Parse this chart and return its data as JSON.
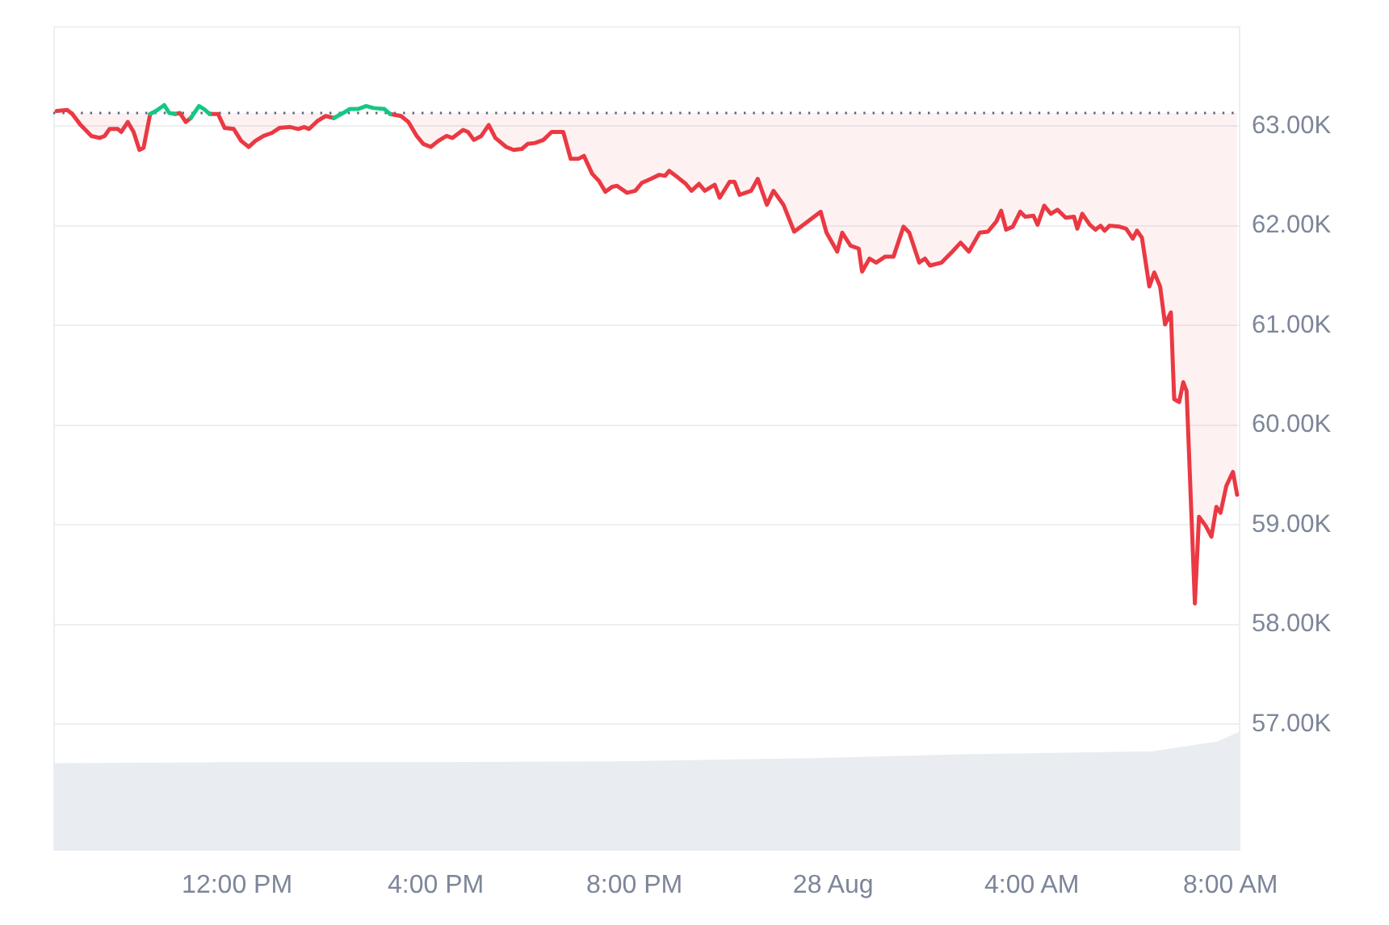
{
  "chart_data": {
    "type": "line",
    "series": [
      {
        "type": "area",
        "color": "#e9edf2",
        "x": [
          "--08-27T08:18",
          "--08-27T11:35",
          "--08-27T15:33",
          "--08-27T19:54",
          "--08-27T23:33",
          "--08-28T02:36",
          "--08-28T06:26",
          "--08-28T07:45",
          "--08-28T08:12"
        ],
        "values": [
          56.6,
          56.61,
          56.61,
          56.62,
          56.65,
          56.69,
          56.72,
          56.82,
          56.92
        ]
      },
      {
        "color": "#ea3943",
        "x": [
          "--08-27T08:22",
          "--08-27T08:35",
          "--08-27T08:41",
          "--08-27T08:51",
          "--08-27T09:04",
          "--08-27T09:14",
          "--08-27T09:20",
          "--08-27T09:26",
          "--08-27T09:36",
          "--08-27T09:40",
          "--08-27T09:48",
          "--08-27T09:55",
          "--08-27T10:02",
          "--08-27T10:07",
          "--08-27T10:15",
          "--08-27T10:22",
          "--08-27T10:32",
          "--08-27T10:38",
          "--08-27T10:45",
          "--08-27T10:51",
          "--08-27T10:58",
          "--08-27T11:04",
          "--08-27T11:14",
          "--08-27T11:20",
          "--08-27T11:27",
          "--08-27T11:37",
          "--08-27T11:45",
          "--08-27T11:56",
          "--08-27T12:05",
          "--08-27T12:14",
          "--08-27T12:22",
          "--08-27T12:32",
          "--08-27T12:42",
          "--08-27T12:51",
          "--08-27T13:04",
          "--08-27T13:14",
          "--08-27T13:21",
          "--08-27T13:27",
          "--08-27T13:37",
          "--08-27T13:47",
          "--08-27T13:57",
          "--08-27T14:08",
          "--08-27T14:16",
          "--08-27T14:26",
          "--08-27T14:36",
          "--08-27T14:45",
          "--08-27T14:58",
          "--08-27T15:05",
          "--08-27T15:18",
          "--08-27T15:27",
          "--08-27T15:37",
          "--08-27T15:45",
          "--08-27T15:54",
          "--08-27T16:03",
          "--08-27T16:13",
          "--08-27T16:20",
          "--08-27T16:33",
          "--08-27T16:39",
          "--08-27T16:46",
          "--08-27T16:55",
          "--08-27T17:04",
          "--08-27T17:12",
          "--08-27T17:25",
          "--08-27T17:34",
          "--08-27T17:44",
          "--08-27T17:51",
          "--08-27T18:00",
          "--08-27T18:10",
          "--08-27T18:20",
          "--08-27T18:34",
          "--08-27T18:43",
          "--08-27T18:52",
          "--08-27T18:59",
          "--08-27T19:09",
          "--08-27T19:17",
          "--08-27T19:25",
          "--08-27T19:33",
          "--08-27T19:39",
          "--08-27T19:51",
          "--08-27T20:01",
          "--08-27T20:09",
          "--08-27T20:20",
          "--08-27T20:30",
          "--08-27T20:37",
          "--08-27T20:42",
          "--08-27T20:53",
          "--08-27T21:02",
          "--08-27T21:09",
          "--08-27T21:18",
          "--08-27T21:25",
          "--08-27T21:37",
          "--08-27T21:43",
          "--08-27T21:55",
          "--08-27T22:01",
          "--08-27T22:07",
          "--08-27T22:21",
          "--08-27T22:29",
          "--08-27T22:40",
          "--08-27T22:48",
          "--08-27T23:00",
          "--08-27T23:13",
          "--08-27T23:29",
          "--08-27T23:45",
          "--08-27T23:52",
          "--08-28T00:05",
          "--08-28T00:11",
          "--08-28T00:21",
          "--08-28T00:31",
          "--08-28T00:35",
          "--08-28T00:44",
          "--08-28T00:52",
          "--08-28T01:03",
          "--08-28T01:13",
          "--08-28T01:25",
          "--08-28T01:32",
          "--08-28T01:44",
          "--08-28T01:51",
          "--08-28T01:57",
          "--08-28T02:11",
          "--08-28T02:24",
          "--08-28T02:34",
          "--08-28T02:44",
          "--08-28T02:57",
          "--08-28T03:07",
          "--08-28T03:17",
          "--08-28T03:23",
          "--08-28T03:29",
          "--08-28T03:37",
          "--08-28T03:46",
          "--08-28T03:52",
          "--08-28T04:02",
          "--08-28T04:07",
          "--08-28T04:15",
          "--08-28T04:23",
          "--08-28T04:31",
          "--08-28T04:41",
          "--08-28T04:51",
          "--08-28T04:55",
          "--08-28T05:01",
          "--08-28T05:10",
          "--08-28T05:17",
          "--08-28T05:23",
          "--08-28T05:28",
          "--08-28T05:34",
          "--08-28T05:46",
          "--08-28T05:54",
          "--08-28T06:02",
          "--08-28T06:07",
          "--08-28T06:13",
          "--08-28T06:22",
          "--08-28T06:28",
          "--08-28T06:35",
          "--08-28T06:41",
          "--08-28T06:48",
          "--08-28T06:52",
          "--08-28T06:58",
          "--08-28T07:03",
          "--08-28T07:07",
          "--08-28T07:17",
          "--08-28T07:22",
          "--08-28T07:30",
          "--08-28T07:37",
          "--08-28T07:43",
          "--08-28T07:48",
          "--08-28T07:55",
          "--08-28T08:03",
          "--08-28T08:08"
        ],
        "values": [
          63.15,
          63.16,
          63.12,
          63.01,
          62.9,
          62.88,
          62.9,
          62.97,
          62.97,
          62.94,
          63.04,
          62.94,
          62.76,
          62.78,
          63.12,
          null,
          null,
          null,
          63.12,
          63.13,
          63.04,
          63.08,
          null,
          null,
          63.12,
          63.12,
          62.98,
          62.97,
          62.85,
          62.79,
          62.85,
          62.9,
          62.93,
          62.98,
          62.99,
          62.97,
          62.99,
          62.97,
          63.05,
          63.1,
          63.08,
          null,
          null,
          null,
          null,
          null,
          null,
          63.12,
          63.1,
          63.04,
          62.9,
          62.82,
          62.79,
          62.85,
          62.9,
          62.88,
          62.96,
          62.94,
          62.86,
          62.9,
          63.01,
          62.88,
          62.79,
          62.76,
          62.77,
          62.82,
          62.83,
          62.86,
          62.94,
          62.94,
          62.67,
          62.67,
          62.7,
          62.52,
          62.45,
          62.34,
          62.39,
          62.4,
          62.33,
          62.35,
          62.43,
          62.47,
          62.51,
          62.5,
          62.55,
          62.48,
          62.42,
          62.35,
          62.42,
          62.35,
          62.41,
          62.28,
          62.44,
          62.44,
          62.31,
          62.35,
          62.47,
          62.21,
          62.35,
          62.21,
          61.94,
          62.04,
          62.14,
          61.93,
          61.74,
          61.93,
          61.8,
          61.77,
          61.54,
          61.67,
          61.63,
          61.69,
          61.69,
          61.99,
          61.93,
          61.63,
          61.67,
          61.6,
          61.63,
          61.74,
          61.83,
          61.74,
          61.93,
          61.94,
          62.04,
          62.15,
          61.96,
          61.99,
          62.14,
          62.09,
          62.1,
          62.01,
          62.2,
          62.12,
          62.16,
          62.08,
          62.09,
          61.97,
          62.12,
          62.01,
          61.96,
          62.0,
          61.95,
          62.0,
          61.99,
          61.97,
          61.87,
          61.95,
          61.88,
          61.39,
          61.53,
          61.39,
          61.01,
          61.13,
          60.26,
          60.23,
          60.43,
          60.34,
          58.21,
          59.08,
          58.99,
          58.88,
          59.18,
          59.12,
          59.39,
          59.53,
          59.3
        ]
      },
      {
        "color": "#16c784",
        "x": [
          "--08-27T10:15",
          "--08-27T10:22",
          "--08-27T10:32",
          "--08-27T10:38",
          "--08-27T10:45",
          "--08-27T10:51",
          "--08-27T11:04",
          "--08-27T11:14",
          "--08-27T11:20",
          "--08-27T11:27",
          "--08-27T11:37",
          "--08-27T13:57",
          "--08-27T14:08",
          "--08-27T14:16",
          "--08-27T14:26",
          "--08-27T14:36",
          "--08-27T14:45",
          "--08-27T14:58",
          "--08-27T15:05"
        ],
        "values": [
          63.12,
          63.15,
          63.21,
          63.13,
          63.12,
          null,
          63.08,
          63.2,
          63.17,
          63.12,
          null,
          63.08,
          63.13,
          63.17,
          63.17,
          63.2,
          63.18,
          63.17,
          63.12
        ]
      }
    ],
    "xlim": [
      "--08-27T08:18",
      "--08-28T08:12"
    ],
    "xticks": [
      {
        "value": "--08-27T12:00",
        "label": "12:00 PM"
      },
      {
        "value": "--08-27T16:00",
        "label": "4:00 PM"
      },
      {
        "value": "--08-27T20:00",
        "label": "8:00 PM"
      },
      {
        "value": "--08-28T00:00",
        "label": "28 Aug"
      },
      {
        "value": "--08-28T04:00",
        "label": "4:00 AM"
      },
      {
        "value": "--08-28T08:00",
        "label": "8:00 AM"
      }
    ],
    "ylim": [
      55.73,
      64
    ],
    "yticks": [
      {
        "value": 57,
        "label": "57.00K"
      },
      {
        "value": 58,
        "label": "58.00K"
      },
      {
        "value": 59,
        "label": "59.00K"
      },
      {
        "value": 60,
        "label": "60.00K"
      },
      {
        "value": 61,
        "label": "61.00K"
      },
      {
        "value": 62,
        "label": "62.00K"
      },
      {
        "value": 63,
        "label": "63.00K"
      }
    ],
    "grid": "y",
    "ref_lines": [
      {
        "axis": "y",
        "value": 63.13,
        "color": "#58667e",
        "line_style": "dotted"
      }
    ],
    "marker": "none",
    "line_style": "solid"
  }
}
